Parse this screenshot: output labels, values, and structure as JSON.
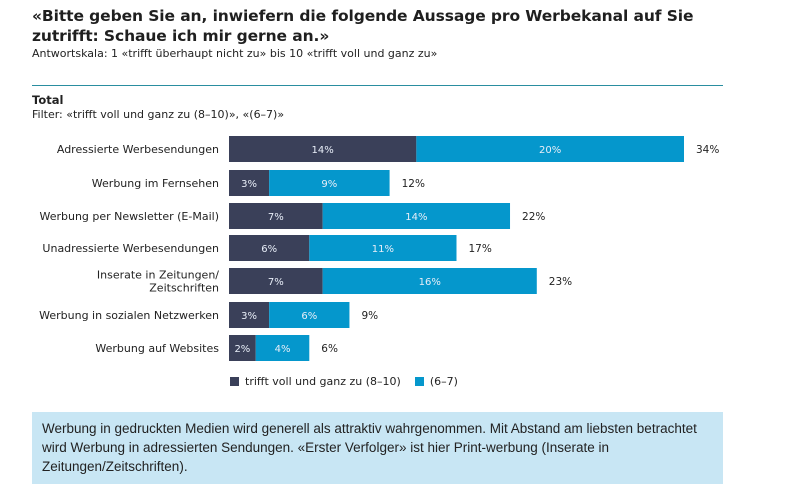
{
  "header": {
    "title": "«Bitte geben Sie an, inwiefern die folgende Aussage pro Werbekanal auf Sie zutrifft: Schaue ich mir gerne an.»",
    "scale_note": "Antwortskala: 1 «trifft überhaupt nicht zu» bis 10 «trifft voll und ganz zu»"
  },
  "section": {
    "total_label": "Total",
    "filter_text": "Filter: «trifft voll und ganz zu (8–10)», «(6–7)»"
  },
  "colors": {
    "dark": "#3a4059",
    "light": "#0597cc",
    "rule": "#2a8ea0",
    "note_bg": "#c8e6f4"
  },
  "chart_data": {
    "type": "bar",
    "orientation": "horizontal",
    "stacked": true,
    "title": "",
    "xlabel": "",
    "ylabel": "",
    "xlim": [
      0,
      34
    ],
    "grid": false,
    "legend_position": "bottom",
    "categories": [
      "Adressierte Werbesendungen",
      "Werbung im Fernsehen",
      "Werbung per Newsletter (E-Mail)",
      "Unadressierte Werbesendungen",
      "Inserate in Zeitungen/\nZeitschriften",
      "Werbung in sozialen Netzwerken",
      "Werbung auf Websites"
    ],
    "series": [
      {
        "name": "trifft voll und ganz zu (8–10)",
        "color": "#3a4059",
        "values": [
          14,
          3,
          7,
          6,
          7,
          3,
          2
        ]
      },
      {
        "name": "(6–7)",
        "color": "#0597cc",
        "values": [
          20,
          9,
          14,
          11,
          16,
          6,
          4
        ]
      }
    ],
    "totals": [
      34,
      12,
      22,
      17,
      23,
      9,
      6
    ],
    "value_suffix": "%"
  },
  "legend": {
    "items": [
      {
        "label": "trifft voll und ganz zu (8–10)"
      },
      {
        "label": "(6–7)"
      }
    ]
  },
  "note": {
    "text": "Werbung in gedruckten Medien wird generell als attraktiv wahrgenommen. Mit Abstand am liebsten betrachtet wird Werbung in adressierten Sendungen. «Erster Verfolger» ist hier Print-werbung (Inserate in Zeitungen/Zeitschriften)."
  }
}
